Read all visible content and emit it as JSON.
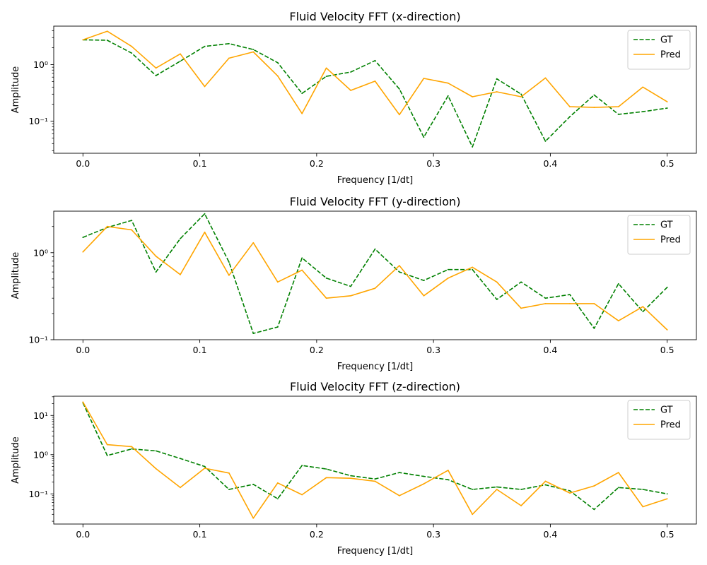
{
  "chart_data": [
    {
      "type": "line",
      "title": "Fluid Velocity FFT (x-direction)",
      "xlabel": "Frequency [1/dt]",
      "ylabel": "Amplitude",
      "yscale": "log",
      "xlim": [
        -0.025,
        0.525
      ],
      "ylim": [
        0.027,
        4.8
      ],
      "xticks": [
        0.0,
        0.1,
        0.2,
        0.3,
        0.4,
        0.5
      ],
      "xtick_labels": [
        "0.0",
        "0.1",
        "0.2",
        "0.3",
        "0.4",
        "0.5"
      ],
      "yticks": [
        0.1,
        1
      ],
      "ytick_labels": [
        "10⁻¹",
        "10⁰"
      ],
      "legend_position": "top-right",
      "x": [
        0.0,
        0.0208,
        0.0417,
        0.0625,
        0.0833,
        0.1042,
        0.125,
        0.1458,
        0.1667,
        0.1875,
        0.2083,
        0.2292,
        0.25,
        0.2708,
        0.2917,
        0.3125,
        0.3333,
        0.3542,
        0.375,
        0.3958,
        0.4167,
        0.4375,
        0.4583,
        0.4792,
        0.5
      ],
      "series": [
        {
          "name": "GT",
          "color": "#008000",
          "dash": "dashed",
          "values": [
            2.75,
            2.7,
            1.6,
            0.64,
            1.15,
            2.1,
            2.35,
            1.85,
            1.08,
            0.31,
            0.62,
            0.74,
            1.18,
            0.37,
            0.052,
            0.28,
            0.035,
            0.56,
            0.3,
            0.044,
            0.12,
            0.29,
            0.132,
            0.147,
            0.17
          ]
        },
        {
          "name": "Pred",
          "color": "#ffa500",
          "dash": "solid",
          "values": [
            2.75,
            3.9,
            2.1,
            0.87,
            1.55,
            0.41,
            1.3,
            1.68,
            0.63,
            0.136,
            0.87,
            0.35,
            0.51,
            0.13,
            0.57,
            0.47,
            0.27,
            0.33,
            0.27,
            0.58,
            0.18,
            0.175,
            0.18,
            0.4,
            0.22
          ]
        }
      ]
    },
    {
      "type": "line",
      "title": "Fluid Velocity FFT (y-direction)",
      "xlabel": "Frequency [1/dt]",
      "ylabel": "Amplitude",
      "yscale": "log",
      "xlim": [
        -0.025,
        0.525
      ],
      "ylim": [
        0.1,
        3.0
      ],
      "xticks": [
        0.0,
        0.1,
        0.2,
        0.3,
        0.4,
        0.5
      ],
      "xtick_labels": [
        "0.0",
        "0.1",
        "0.2",
        "0.3",
        "0.4",
        "0.5"
      ],
      "yticks": [
        0.1,
        1
      ],
      "ytick_labels": [
        "10⁻¹",
        "10⁰"
      ],
      "legend_position": "top-right",
      "x": [
        0.0,
        0.0208,
        0.0417,
        0.0625,
        0.0833,
        0.1042,
        0.125,
        0.1458,
        0.1667,
        0.1875,
        0.2083,
        0.2292,
        0.25,
        0.2708,
        0.2917,
        0.3125,
        0.3333,
        0.3542,
        0.375,
        0.3958,
        0.4167,
        0.4375,
        0.4583,
        0.4792,
        0.5
      ],
      "series": [
        {
          "name": "GT",
          "color": "#008000",
          "dash": "dashed",
          "values": [
            1.5,
            1.95,
            2.35,
            0.6,
            1.45,
            2.8,
            0.78,
            0.118,
            0.14,
            0.87,
            0.51,
            0.41,
            1.1,
            0.6,
            0.48,
            0.64,
            0.64,
            0.29,
            0.46,
            0.3,
            0.33,
            0.135,
            0.44,
            0.21,
            0.4
          ]
        },
        {
          "name": "Pred",
          "color": "#ffa500",
          "dash": "solid",
          "values": [
            1.02,
            2.0,
            1.83,
            0.91,
            0.56,
            1.72,
            0.55,
            1.3,
            0.46,
            0.63,
            0.3,
            0.32,
            0.39,
            0.71,
            0.32,
            0.51,
            0.68,
            0.46,
            0.23,
            0.26,
            0.26,
            0.26,
            0.165,
            0.24,
            0.13
          ]
        }
      ]
    },
    {
      "type": "line",
      "title": "Fluid Velocity FFT (z-direction)",
      "xlabel": "Frequency [1/dt]",
      "ylabel": "Amplitude",
      "yscale": "log",
      "xlim": [
        -0.025,
        0.525
      ],
      "ylim": [
        0.017,
        31
      ],
      "xticks": [
        0.0,
        0.1,
        0.2,
        0.3,
        0.4,
        0.5
      ],
      "xtick_labels": [
        "0.0",
        "0.1",
        "0.2",
        "0.3",
        "0.4",
        "0.5"
      ],
      "yticks": [
        0.1,
        1,
        10
      ],
      "ytick_labels": [
        "10⁻¹",
        "10⁰",
        "10¹"
      ],
      "legend_position": "top-right",
      "x": [
        0.0,
        0.0208,
        0.0417,
        0.0625,
        0.0833,
        0.1042,
        0.125,
        0.1458,
        0.1667,
        0.1875,
        0.2083,
        0.2292,
        0.25,
        0.2708,
        0.2917,
        0.3125,
        0.3333,
        0.3542,
        0.375,
        0.3958,
        0.4167,
        0.4375,
        0.4583,
        0.4792,
        0.5
      ],
      "series": [
        {
          "name": "GT",
          "color": "#008000",
          "dash": "dashed",
          "values": [
            21,
            0.95,
            1.4,
            1.25,
            0.8,
            0.5,
            0.13,
            0.175,
            0.075,
            0.53,
            0.43,
            0.29,
            0.24,
            0.35,
            0.28,
            0.23,
            0.13,
            0.15,
            0.13,
            0.17,
            0.12,
            0.04,
            0.145,
            0.13,
            0.1
          ]
        },
        {
          "name": "Pred",
          "color": "#ffa500",
          "dash": "solid",
          "values": [
            22,
            1.8,
            1.6,
            0.44,
            0.145,
            0.45,
            0.34,
            0.024,
            0.19,
            0.095,
            0.26,
            0.25,
            0.21,
            0.09,
            0.18,
            0.4,
            0.03,
            0.13,
            0.05,
            0.21,
            0.105,
            0.16,
            0.35,
            0.047,
            0.075
          ]
        }
      ]
    }
  ]
}
